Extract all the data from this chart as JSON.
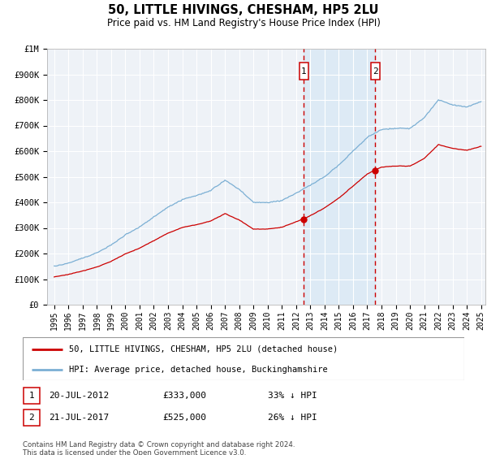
{
  "title": "50, LITTLE HIVINGS, CHESHAM, HP5 2LU",
  "subtitle": "Price paid vs. HM Land Registry's House Price Index (HPI)",
  "legend_line1": "50, LITTLE HIVINGS, CHESHAM, HP5 2LU (detached house)",
  "legend_line2": "HPI: Average price, detached house, Buckinghamshire",
  "footnote": "Contains HM Land Registry data © Crown copyright and database right 2024.\nThis data is licensed under the Open Government Licence v3.0.",
  "marker1_date": "20-JUL-2012",
  "marker1_price": "£333,000",
  "marker1_hpi": "33% ↓ HPI",
  "marker1_year": 2012.55,
  "marker1_value": 333000,
  "marker2_date": "21-JUL-2017",
  "marker2_price": "£525,000",
  "marker2_hpi": "26% ↓ HPI",
  "marker2_year": 2017.55,
  "marker2_value": 525000,
  "ylim": [
    0,
    1000000
  ],
  "yticks": [
    0,
    100000,
    200000,
    300000,
    400000,
    500000,
    600000,
    700000,
    800000,
    900000,
    1000000
  ],
  "ytick_labels": [
    "£0",
    "£100K",
    "£200K",
    "£300K",
    "£400K",
    "£500K",
    "£600K",
    "£700K",
    "£800K",
    "£900K",
    "£1M"
  ],
  "hpi_color": "#7bafd4",
  "price_color": "#cc0000",
  "background_color": "#ffffff",
  "plot_bg_color": "#eef2f7",
  "grid_color": "#ffffff",
  "marker_color": "#cc0000",
  "dashed_color": "#cc0000",
  "shade_color": "#d6e8f5",
  "xstart": 1995,
  "xend": 2025,
  "hpi_key_years": [
    1995,
    1996,
    1997,
    1998,
    1999,
    2000,
    2001,
    2002,
    2003,
    2004,
    2005,
    2006,
    2007,
    2008,
    2009,
    2010,
    2011,
    2012,
    2013,
    2014,
    2015,
    2016,
    2017,
    2018,
    2019,
    2020,
    2021,
    2022,
    2023,
    2024,
    2025
  ],
  "hpi_key_values": [
    150000,
    163000,
    182000,
    205000,
    235000,
    275000,
    305000,
    345000,
    385000,
    415000,
    430000,
    450000,
    490000,
    455000,
    405000,
    405000,
    415000,
    445000,
    475000,
    510000,
    555000,
    610000,
    665000,
    695000,
    700000,
    700000,
    740000,
    810000,
    790000,
    780000,
    800000
  ]
}
